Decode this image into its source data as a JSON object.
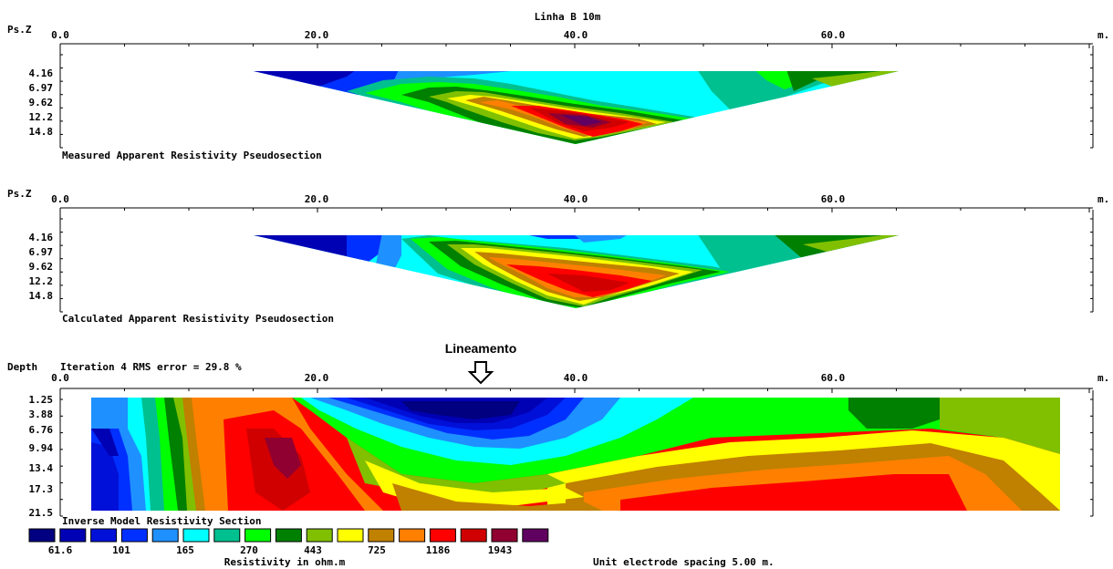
{
  "figure_title": "Linha B 10m",
  "distance_unit": "m.",
  "x_ticks": [
    "0.0",
    "20.0",
    "40.0",
    "60.0"
  ],
  "panels": [
    {
      "id": "measured",
      "axis_label": "Ps.Z",
      "caption": "Measured Apparent Resistivity Pseudosection",
      "depth_ticks": [
        "4.16",
        "6.97",
        "9.62",
        "12.2",
        "14.8"
      ]
    },
    {
      "id": "calculated",
      "axis_label": "Ps.Z",
      "caption": "Calculated Apparent Resistivity Pseudosection",
      "depth_ticks": [
        "4.16",
        "6.97",
        "9.62",
        "12.2",
        "14.8"
      ]
    },
    {
      "id": "inverse",
      "axis_label": "Depth",
      "iteration_text": "Iteration 4 RMS error = 29.8 %",
      "caption": "Inverse Model Resistivity Section",
      "depth_ticks": [
        "1.25",
        "3.88",
        "6.76",
        "9.94",
        "13.4",
        "17.3",
        "21.5"
      ]
    }
  ],
  "annotation": {
    "label": "Lineamento",
    "arrow_icon": "down-arrow-icon"
  },
  "legend": {
    "title": "Resistivity in ohm.m",
    "colors": [
      "#000080",
      "#0000b4",
      "#0010d8",
      "#0030ff",
      "#1e90ff",
      "#00ffff",
      "#00c090",
      "#00ff00",
      "#008000",
      "#80c000",
      "#ffff00",
      "#c08000",
      "#ff8000",
      "#ff0000",
      "#d00000",
      "#900030",
      "#600060"
    ],
    "labels": [
      "61.6",
      "101",
      "165",
      "270",
      "443",
      "725",
      "1186",
      "1943"
    ]
  },
  "footer_note": "Unit electrode spacing 5.00 m.",
  "chart_data": [
    {
      "type": "heatmap",
      "title": "Measured Apparent Resistivity Pseudosection",
      "x_range": [
        0,
        80
      ],
      "y_ticks": [
        4.16,
        6.97,
        9.62,
        12.2,
        14.8
      ]
    },
    {
      "type": "heatmap",
      "title": "Calculated Apparent Resistivity Pseudosection",
      "x_range": [
        0,
        80
      ],
      "y_ticks": [
        4.16,
        6.97,
        9.62,
        12.2,
        14.8
      ]
    },
    {
      "type": "heatmap",
      "title": "Inverse Model Resistivity Section",
      "x_range": [
        0,
        80
      ],
      "y_ticks": [
        1.25,
        3.88,
        6.76,
        9.94,
        13.4,
        17.3,
        21.5
      ],
      "rms_error_percent": 29.8,
      "iteration": 4
    }
  ]
}
